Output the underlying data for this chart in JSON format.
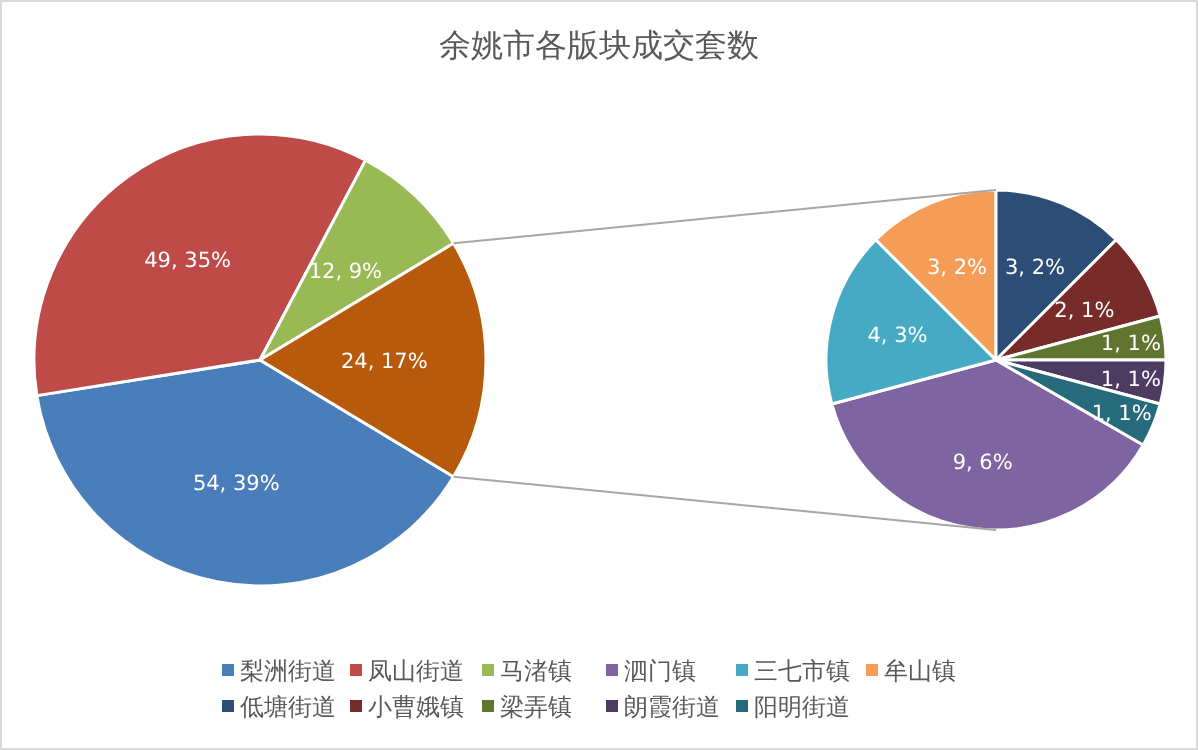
{
  "chart_data": [
    {
      "type": "pie",
      "title": "余姚市各版块成交套数",
      "categories": [
        "梨洲街道",
        "凤山街道",
        "马渚镇",
        null
      ],
      "values": [
        54,
        49,
        12,
        24
      ],
      "colors": [
        "#4a7ebb",
        "#be4b48",
        "#98b954",
        "#b85a0c"
      ],
      "value_labels": [
        "54, 39%",
        "49, 35%",
        "12, 9%",
        "24, 17%"
      ],
      "legend": "bottom"
    },
    {
      "type": "pie",
      "categories": [
        "泗门镇",
        "三七市镇",
        "牟山镇",
        "低塘街道",
        "小曹娥镇",
        "梁弄镇",
        "朗霞街道",
        "阳明街道"
      ],
      "values": [
        9,
        4,
        3,
        3,
        2,
        1,
        1,
        1
      ],
      "colors": [
        "#7f64a2",
        "#46aac4",
        "#f59d56",
        "#2c4d75",
        "#772c2a",
        "#5f7530",
        "#4d3b62",
        "#276a7c"
      ],
      "value_labels": [
        "9, 6%",
        "4, 3%",
        "3, 2%",
        "3, 2%",
        "2, 1%",
        "1, 1%",
        "1, 1%",
        "1, 1%"
      ],
      "legend": "bottom"
    }
  ]
}
